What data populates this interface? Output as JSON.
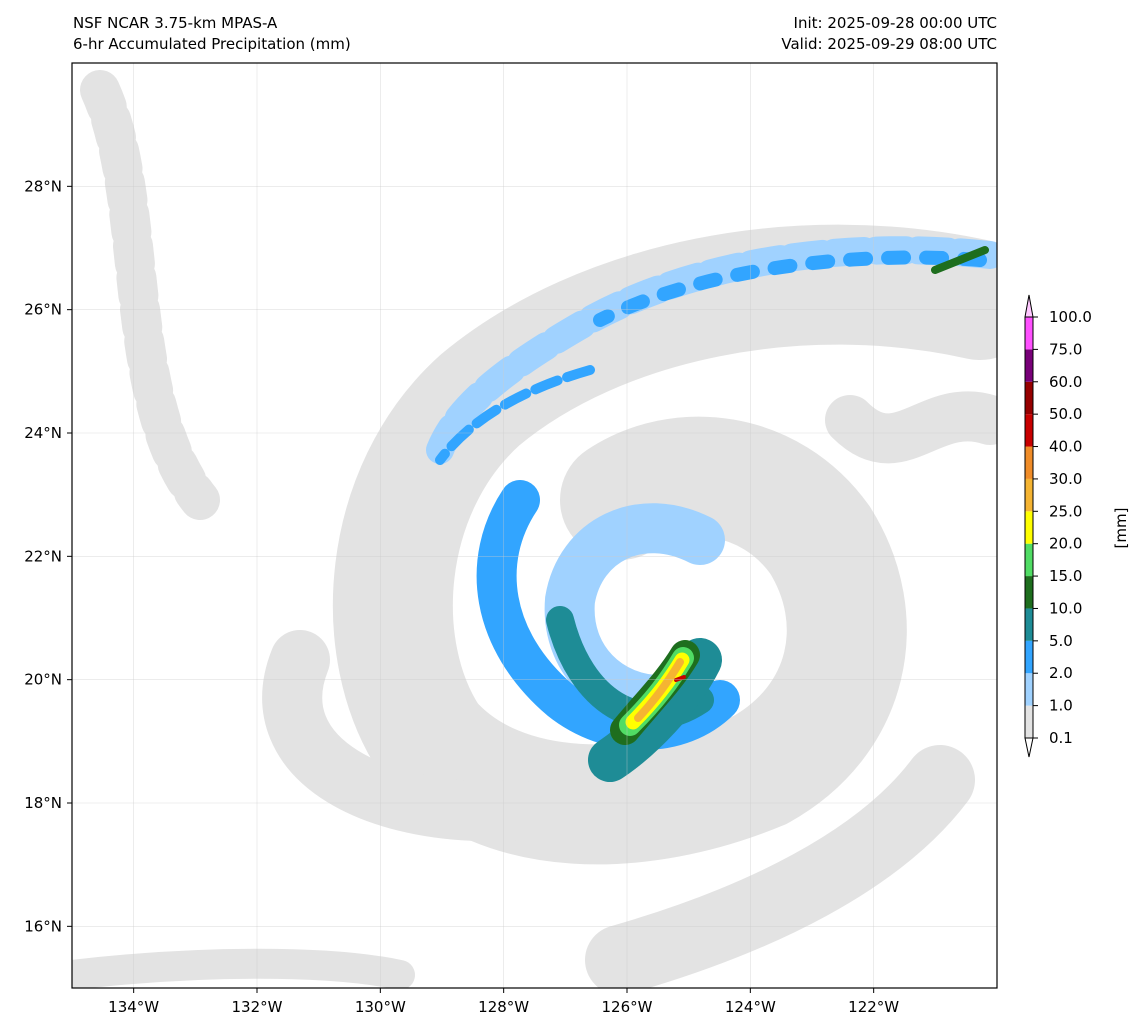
{
  "header": {
    "title_left_1": "NSF NCAR 3.75-km MPAS-A",
    "title_left_2": "6-hr Accumulated Precipitation (mm)",
    "title_right_1": "Init: 2025-09-28 00:00 UTC",
    "title_right_2": "Valid: 2025-09-29 08:00 UTC"
  },
  "map": {
    "lon_range": [
      -135,
      -120
    ],
    "lat_range": [
      15,
      30
    ],
    "lon_ticks": [
      {
        "v": -134,
        "label": "134°W"
      },
      {
        "v": -132,
        "label": "132°W"
      },
      {
        "v": -130,
        "label": "130°W"
      },
      {
        "v": -128,
        "label": "128°W"
      },
      {
        "v": -126,
        "label": "126°W"
      },
      {
        "v": -124,
        "label": "124°W"
      },
      {
        "v": -122,
        "label": "122°W"
      }
    ],
    "lat_ticks": [
      {
        "v": 28,
        "label": "28°N"
      },
      {
        "v": 26,
        "label": "26°N"
      },
      {
        "v": 24,
        "label": "24°N"
      },
      {
        "v": 22,
        "label": "22°N"
      },
      {
        "v": 20,
        "label": "20°N"
      },
      {
        "v": 18,
        "label": "18°N"
      },
      {
        "v": 16,
        "label": "16°N"
      }
    ]
  },
  "colorbar": {
    "unit_label": "[mm]",
    "levels": [
      "0.1",
      "1.0",
      "2.0",
      "5.0",
      "10.0",
      "15.0",
      "20.0",
      "25.0",
      "30.0",
      "40.0",
      "50.0",
      "60.0",
      "75.0",
      "100.0"
    ],
    "colors": [
      "#e3e3e3",
      "#a0d2ff",
      "#32a5ff",
      "#1e8c96",
      "#1e6e1e",
      "#50dc64",
      "#ffff00",
      "#f5b432",
      "#f08c28",
      "#c80000",
      "#960000",
      "#780078",
      "#ff50ff"
    ],
    "over_color": "#ffc8ff",
    "under_color": "#ffffff"
  }
}
